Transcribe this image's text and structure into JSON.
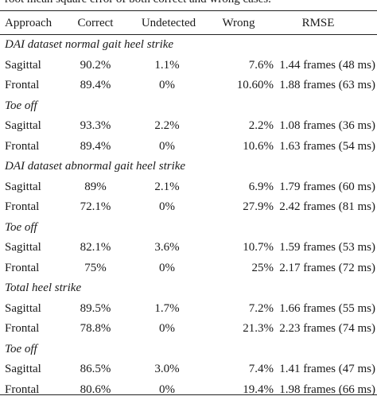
{
  "caption": "root mean square error of both correct and wrong cases.",
  "headers": {
    "approach": "Approach",
    "correct": "Correct",
    "undetected": "Undetected",
    "wrong": "Wrong",
    "rmse": "RMSE"
  },
  "sections": [
    {
      "title": "DAI dataset normal gait heel strike",
      "rows": [
        {
          "approach": "Sagittal",
          "correct": "90.2%",
          "undetected": "1.1%",
          "wrong": "7.6%",
          "rmse": "1.44 frames (48 ms)"
        },
        {
          "approach": "Frontal",
          "correct": "89.4%",
          "undetected": "0%",
          "wrong": "10.60%",
          "rmse": "1.88 frames (63 ms)"
        }
      ]
    },
    {
      "title": "Toe off",
      "rows": [
        {
          "approach": "Sagittal",
          "correct": "93.3%",
          "undetected": "2.2%",
          "wrong": "2.2%",
          "rmse": "1.08 frames (36 ms)"
        },
        {
          "approach": "Frontal",
          "correct": "89.4%",
          "undetected": "0%",
          "wrong": "10.6%",
          "rmse": "1.63 frames (54 ms)"
        }
      ]
    },
    {
      "title": "DAI dataset abnormal gait heel strike",
      "rows": [
        {
          "approach": "Sagittal",
          "correct": "89%",
          "undetected": "2.1%",
          "wrong": "6.9%",
          "rmse": "1.79 frames (60 ms)"
        },
        {
          "approach": "Frontal",
          "correct": "72.1%",
          "undetected": "0%",
          "wrong": "27.9%",
          "rmse": "2.42 frames (81 ms)"
        }
      ]
    },
    {
      "title": "Toe off",
      "rows": [
        {
          "approach": "Sagittal",
          "correct": "82.1%",
          "undetected": "3.6%",
          "wrong": "10.7%",
          "rmse": "1.59 frames (53 ms)"
        },
        {
          "approach": "Frontal",
          "correct": "75%",
          "undetected": "0%",
          "wrong": "25%",
          "rmse": "2.17 frames (72 ms)"
        }
      ]
    },
    {
      "title": "Total heel strike",
      "rows": [
        {
          "approach": "Sagittal",
          "correct": "89.5%",
          "undetected": "1.7%",
          "wrong": "7.2%",
          "rmse": "1.66 frames (55 ms)"
        },
        {
          "approach": "Frontal",
          "correct": "78.8%",
          "undetected": "0%",
          "wrong": "21.3%",
          "rmse": "2.23 frames (74 ms)"
        }
      ]
    },
    {
      "title": "Toe off",
      "rows": [
        {
          "approach": "Sagittal",
          "correct": "86.5%",
          "undetected": "3.0%",
          "wrong": "7.4%",
          "rmse": "1.41 frames (47 ms)"
        },
        {
          "approach": "Frontal",
          "correct": "80.6%",
          "undetected": "0%",
          "wrong": "19.4%",
          "rmse": "1.98 frames (66 ms)"
        }
      ]
    }
  ]
}
